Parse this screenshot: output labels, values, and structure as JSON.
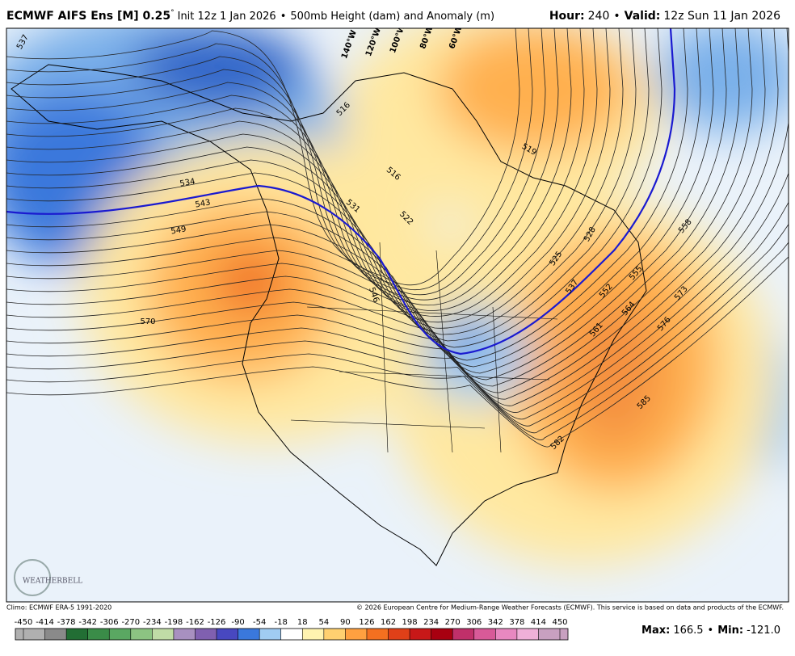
{
  "header": {
    "model": "ECMWF AIFS Ens [M] 0.25",
    "degree": "°",
    "init": "Init 12z 1 Jan 2026",
    "separator": "•",
    "field": "500mb Height (dam) and Anomaly (m)",
    "hour_label": "Hour:",
    "hour": "240",
    "valid_label": "Valid:",
    "valid": "12z Sun 11 Jan 2026"
  },
  "map": {
    "longitude_labels": [
      "140°W",
      "120°W",
      "100°W",
      "80°W",
      "60°W"
    ],
    "contour_labels": [
      "537",
      "516",
      "519",
      "534",
      "543",
      "516",
      "531",
      "522",
      "549",
      "528",
      "558",
      "525",
      "570",
      "546",
      "537",
      "555",
      "552",
      "573",
      "564",
      "561",
      "576",
      "585",
      "582"
    ],
    "logo": "WEATHERBELL"
  },
  "footer": {
    "climo": "Climo: ECMWF ERA-5 1991-2020",
    "copyright": "© 2026 European Centre for Medium-Range Weather Forecasts (ECMWF). This service is based on data and products of the ECMWF.",
    "colorbar": {
      "ticks": [
        -450,
        -414,
        -378,
        -342,
        -306,
        -270,
        -234,
        -198,
        -162,
        -126,
        -90,
        -54,
        -18,
        18,
        54,
        90,
        126,
        162,
        198,
        234,
        270,
        306,
        342,
        378,
        414,
        450
      ],
      "colors": [
        "#b0b0b0",
        "#8a8a8a",
        "#226e34",
        "#3a8c48",
        "#5aa862",
        "#8cc482",
        "#c0dca6",
        "#a890c0",
        "#8060b0",
        "#4848c0",
        "#3a78dc",
        "#a0ccf2",
        "#ffffff",
        "#fff3b0",
        "#ffd070",
        "#ffa040",
        "#f47020",
        "#e04018",
        "#c81818",
        "#a80010",
        "#c0306a",
        "#d85a98",
        "#e888c0",
        "#f0b0d8",
        "#c8a0c0"
      ]
    },
    "max_label": "Max",
    "max": "166.5",
    "separator": "•",
    "min_label": "Min",
    "min": "-121.0"
  }
}
